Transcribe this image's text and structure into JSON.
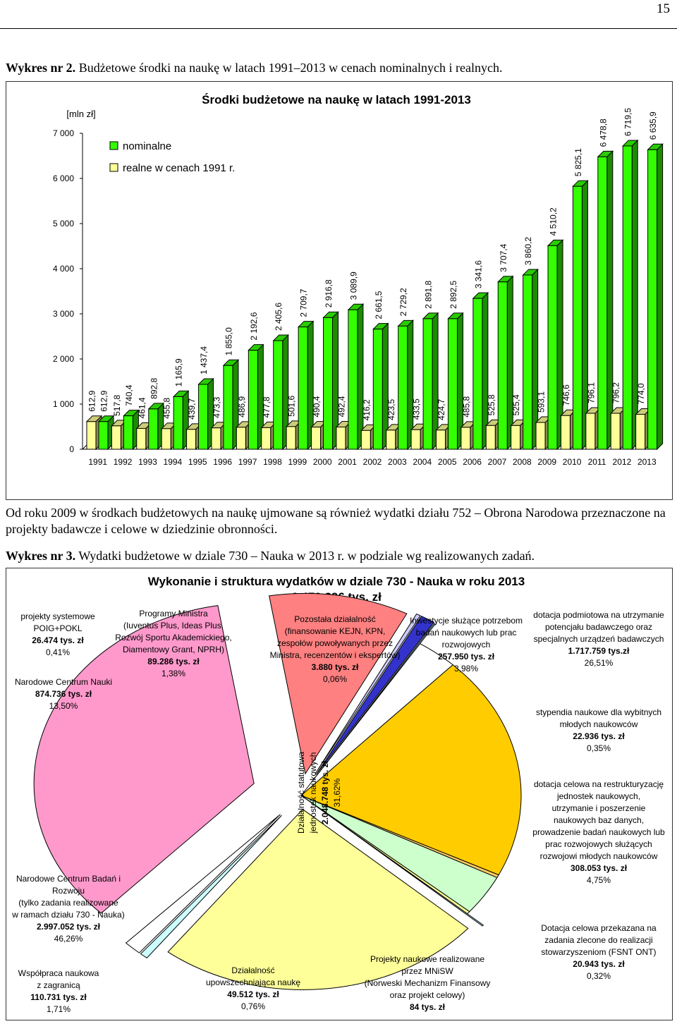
{
  "page_number": "15",
  "caption1": {
    "label": "Wykres nr 2.",
    "text": " Budżetowe środki na naukę w latach 1991–2013 w cenach nominalnych i realnych."
  },
  "chart_data": [
    {
      "type": "bar",
      "title": "Środki budżetowe na naukę w latach 1991-2013",
      "ylabel": "[mln zł]",
      "ylim": [
        0,
        7000
      ],
      "yticks": [
        "0",
        "1 000",
        "2 000",
        "3 000",
        "4 000",
        "5 000",
        "6 000",
        "7 000"
      ],
      "grid": false,
      "legend_position": "top-left",
      "categories": [
        "1991",
        "1992",
        "1993",
        "1994",
        "1995",
        "1996",
        "1997",
        "1998",
        "1999",
        "2000",
        "2001",
        "2002",
        "2003",
        "2004",
        "2005",
        "2006",
        "2007",
        "2008",
        "2009",
        "2010",
        "2011",
        "2012",
        "2013"
      ],
      "series": [
        {
          "name": "nominalne",
          "color": "#33ff00",
          "values": [
            612.9,
            740.4,
            892.8,
            1165.9,
            1437.4,
            1855.0,
            2192.6,
            2405.6,
            2709.7,
            2916.8,
            3089.9,
            2661.5,
            2729.2,
            2891.8,
            2892.5,
            3341.6,
            3707.4,
            3860.2,
            4510.2,
            5825.1,
            6478.8,
            6719.5,
            6635.9
          ],
          "labels": [
            "612,9",
            "740,4",
            "892,8",
            "1 165,9",
            "1 437,4",
            "1 855,0",
            "2 192,6",
            "2 405,6",
            "2 709,7",
            "2 916,8",
            "3 089,9",
            "2 661,5",
            "2 729,2",
            "2 891,8",
            "2 892,5",
            "3 341,6",
            "3 707,4",
            "3 860,2",
            "4 510,2",
            "5 825,1",
            "6 478,8",
            "6 719,5",
            "6 635,9"
          ]
        },
        {
          "name": "realne w cenach 1991 r.",
          "color": "#ffff99",
          "values": [
            612.9,
            517.8,
            461.4,
            455.8,
            439.7,
            473.3,
            486.9,
            477.8,
            501.6,
            490.4,
            492.4,
            416.2,
            423.5,
            433.5,
            424.7,
            485.8,
            525.8,
            525.4,
            593.1,
            746.6,
            796.1,
            796.2,
            774.0
          ],
          "labels": [
            "612,9",
            "517,8",
            "461,4",
            "455,8",
            "439,7",
            "473,3",
            "486,9",
            "477,8",
            "501,6",
            "490,4",
            "492,4",
            "416,2",
            "423,5",
            "433,5",
            "424,7",
            "485,8",
            "525,8",
            "525,4",
            "593,1",
            "746,6",
            "796,1",
            "796,2",
            "774,0"
          ]
        }
      ]
    },
    {
      "type": "pie",
      "title": "Wykonanie i struktura wydatków w dziale 730 - Nauka w roku 2013",
      "subtitle": "6.479.396 tys. zł",
      "slices": [
        {
          "value": 46.26,
          "color": "#ff99cc"
        },
        {
          "value": 13.5,
          "color": "#ff8080"
        },
        {
          "value": 0.41,
          "color": "#ccccff"
        },
        {
          "value": 1.38,
          "color": "#3333cc"
        },
        {
          "value": 0.06,
          "color": "#99ccff"
        },
        {
          "value": 3.98,
          "color": "#ffffff"
        },
        {
          "value": 26.51,
          "color": "#ffcc00"
        },
        {
          "value": 0.35,
          "color": "#ffcc66"
        },
        {
          "value": 4.75,
          "color": "#ccffcc"
        },
        {
          "value": 0.32,
          "color": "#ffff99"
        },
        {
          "value": 0.0,
          "color": "#ccffff"
        },
        {
          "value": 31.62,
          "color": "#ffff99"
        },
        {
          "value": 0.76,
          "color": "#ccffff"
        },
        {
          "value": 1.71,
          "color": "#ffffff"
        }
      ]
    }
  ],
  "chart1": {
    "title": "Środki budżetowe na naukę w latach 1991-2013",
    "unit": "[mln zł]",
    "legend": [
      "nominalne",
      "realne w cenach 1991 r."
    ]
  },
  "paragraph": "Od roku 2009 w środkach budżetowych na naukę ujmowane są również wydatki działu 752 – Obrona Narodowa przeznaczone na projekty badawcze i celowe w dziedzinie obronności.",
  "caption2": {
    "label": "Wykres nr 3.",
    "text": " Wydatki budżetowe w dziale 730 – Nauka w 2013 r. w podziale wg realizowanych zadań."
  },
  "chart2": {
    "title": "Wykonanie i struktura wydatków w dziale 730 - Nauka w roku 2013",
    "total": "6.479.396 tys. zł",
    "labels": {
      "poig": {
        "l1": "projekty systemowe",
        "l2": "POIG+POKL",
        "v": "26.474 tys. zł",
        "p": "0,41%"
      },
      "ncn": {
        "l1": "Narodowe Centrum Nauki",
        "v": "874.736 tys. zł",
        "p": "13,50%"
      },
      "pm": {
        "l1": "Programy Ministra",
        "l2": "(Iuventus Plus, Ideas Plus,",
        "l3": "Rozwój Sportu Akademickiego,",
        "l4": "Diamentowy Grant, NPRH)",
        "v": "89.286 tys. zł",
        "p": "1,38%"
      },
      "pd": {
        "l1": "Pozostała działalność",
        "l2": "(finansowanie KEJN, KPN,",
        "l3": "zespołów powoływanych przez",
        "l4": "Ministra, recenzentów i ekspertów)",
        "v": "3.880 tys. zł",
        "p": "0,06%"
      },
      "inw": {
        "l1": "Inwestycje służące potrzebom",
        "l2": "badań naukowych lub prac",
        "l3": "rozwojowych",
        "v": "257.950 tys. zł",
        "p": "3,98%"
      },
      "dot": {
        "l1": "dotacja podmiotowa na utrzymanie",
        "l2": "potencjału badawczego oraz",
        "l3": "specjalnych urządzeń badawczych",
        "v": "1.717.759 tys.zł",
        "p": "26,51%"
      },
      "styp": {
        "l1": "stypendia naukowe dla wybitnych",
        "l2": "młodych naukowców",
        "v": "22.936 tys. zł",
        "p": "0,35%"
      },
      "dc": {
        "l1": "dotacja celowa na restrukturyzację",
        "l2": "jednostek naukowych,",
        "l3": "utrzymanie i poszerzenie",
        "l4": "naukowych baz danych,",
        "l5": "prowadzenie badań naukowych lub",
        "l6": "prac rozwojowych służących",
        "l7": "rozwojowi młodych naukowców",
        "v": "308.053 tys. zł",
        "p": "4,75%"
      },
      "fsnt": {
        "l1": "Dotacja celowa przekazana na",
        "l2": "zadania zlecone do realizacji",
        "l3": "stowarzyszeniom (FSNT ONT)",
        "v": "20.943 tys. zł",
        "p": "0,32%"
      },
      "mnisw": {
        "l1": "Projekty naukowe realizowane",
        "l2": "przez MNiSW",
        "l3": "(Norweski Mechanizm Finansowy",
        "l4": "oraz projekt celowy)",
        "v": "84 tys. zł"
      },
      "upow": {
        "l1": "Działalność",
        "l2": "upowszechniająca naukę",
        "v": "49.512 tys. zł",
        "p": "0,76%"
      },
      "wsp": {
        "l1": "Współpraca naukowa",
        "l2": "z zagranicą",
        "v": "110.731 tys. zł",
        "p": "1,71%"
      },
      "ncbr": {
        "l1": "Narodowe Centrum Badań i",
        "l2": "Rozwoju",
        "l3": "(tylko zadania realizowane",
        "l4": "w ramach działu 730 - Nauka)",
        "v": "2.997.052 tys. zł",
        "p": "46,26%"
      },
      "stat": {
        "l1": "Działalność statutowa",
        "l2": "jednostek naukowych",
        "v": "2.048.748 tys. zł",
        "p": "31,62%"
      }
    }
  }
}
